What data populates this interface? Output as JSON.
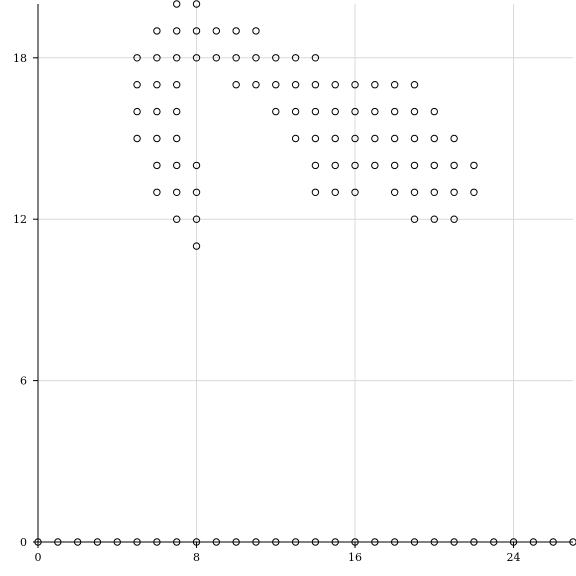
{
  "chart_data": {
    "type": "scatter",
    "title": "",
    "xlabel": "",
    "ylabel": "",
    "xlim": [
      0,
      27
    ],
    "ylim": [
      0,
      20
    ],
    "grid": true,
    "legend": "none",
    "xticks": [
      0,
      8,
      16,
      24
    ],
    "yticks": [
      0,
      6,
      12,
      18
    ],
    "xtick_labels": [
      "0",
      "8",
      "16",
      "24"
    ],
    "ytick_labels": [
      "0",
      "6",
      "12",
      "18"
    ],
    "marker": "open-circle",
    "series": [
      {
        "name": "points",
        "points": [
          [
            0,
            0
          ],
          [
            1,
            0
          ],
          [
            2,
            0
          ],
          [
            3,
            0
          ],
          [
            4,
            0
          ],
          [
            5,
            0
          ],
          [
            6,
            0
          ],
          [
            7,
            0
          ],
          [
            8,
            0
          ],
          [
            9,
            0
          ],
          [
            10,
            0
          ],
          [
            11,
            0
          ],
          [
            12,
            0
          ],
          [
            13,
            0
          ],
          [
            14,
            0
          ],
          [
            15,
            0
          ],
          [
            16,
            0
          ],
          [
            17,
            0
          ],
          [
            18,
            0
          ],
          [
            19,
            0
          ],
          [
            20,
            0
          ],
          [
            21,
            0
          ],
          [
            22,
            0
          ],
          [
            23,
            0
          ],
          [
            24,
            0
          ],
          [
            25,
            0
          ],
          [
            26,
            0
          ],
          [
            27,
            0
          ],
          [
            7,
            20
          ],
          [
            8,
            20
          ],
          [
            6,
            19
          ],
          [
            7,
            19
          ],
          [
            8,
            19
          ],
          [
            9,
            19
          ],
          [
            10,
            19
          ],
          [
            11,
            19
          ],
          [
            5,
            18
          ],
          [
            6,
            18
          ],
          [
            7,
            18
          ],
          [
            8,
            18
          ],
          [
            9,
            18
          ],
          [
            10,
            18
          ],
          [
            11,
            18
          ],
          [
            12,
            18
          ],
          [
            13,
            18
          ],
          [
            14,
            18
          ],
          [
            5,
            17
          ],
          [
            6,
            17
          ],
          [
            7,
            17
          ],
          [
            10,
            17
          ],
          [
            11,
            17
          ],
          [
            12,
            17
          ],
          [
            13,
            17
          ],
          [
            14,
            17
          ],
          [
            15,
            17
          ],
          [
            16,
            17
          ],
          [
            17,
            17
          ],
          [
            18,
            17
          ],
          [
            19,
            17
          ],
          [
            5,
            16
          ],
          [
            6,
            16
          ],
          [
            7,
            16
          ],
          [
            12,
            16
          ],
          [
            13,
            16
          ],
          [
            14,
            16
          ],
          [
            15,
            16
          ],
          [
            16,
            16
          ],
          [
            17,
            16
          ],
          [
            18,
            16
          ],
          [
            19,
            16
          ],
          [
            20,
            16
          ],
          [
            5,
            15
          ],
          [
            6,
            15
          ],
          [
            7,
            15
          ],
          [
            13,
            15
          ],
          [
            14,
            15
          ],
          [
            15,
            15
          ],
          [
            16,
            15
          ],
          [
            17,
            15
          ],
          [
            18,
            15
          ],
          [
            19,
            15
          ],
          [
            20,
            15
          ],
          [
            21,
            15
          ],
          [
            6,
            14
          ],
          [
            7,
            14
          ],
          [
            8,
            14
          ],
          [
            14,
            14
          ],
          [
            15,
            14
          ],
          [
            16,
            14
          ],
          [
            17,
            14
          ],
          [
            18,
            14
          ],
          [
            19,
            14
          ],
          [
            20,
            14
          ],
          [
            21,
            14
          ],
          [
            22,
            14
          ],
          [
            6,
            13
          ],
          [
            7,
            13
          ],
          [
            8,
            13
          ],
          [
            14,
            13
          ],
          [
            15,
            13
          ],
          [
            16,
            13
          ],
          [
            18,
            13
          ],
          [
            19,
            13
          ],
          [
            20,
            13
          ],
          [
            21,
            13
          ],
          [
            22,
            13
          ],
          [
            7,
            12
          ],
          [
            8,
            12
          ],
          [
            19,
            12
          ],
          [
            20,
            12
          ],
          [
            21,
            12
          ],
          [
            8,
            11
          ]
        ]
      }
    ]
  }
}
